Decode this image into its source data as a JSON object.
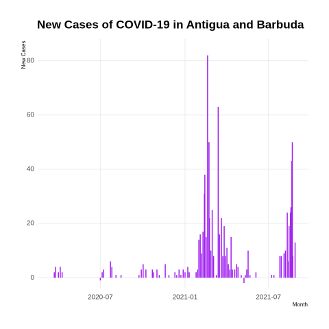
{
  "chart_data": {
    "type": "bar",
    "title": "New Cases of COVID-19 in Antigua and Barbuda",
    "x_label": "Month",
    "y_label": "New Cases",
    "color": "#a020f0",
    "grid": true,
    "xlim": [
      "2020-02-16",
      "2021-09-26"
    ],
    "xticks": [
      {
        "value": "2020-07-01",
        "label": "2020-07"
      },
      {
        "value": "2021-01-01",
        "label": "2021-01"
      },
      {
        "value": "2021-07-01",
        "label": "2021-07"
      }
    ],
    "ylim": [
      -4,
      88
    ],
    "yticks": [
      0,
      20,
      40,
      60,
      80
    ],
    "x": [
      "2020-03-23",
      "2020-03-26",
      "2020-04-01",
      "2020-04-05",
      "2020-04-09",
      "2020-07-01",
      "2020-07-05",
      "2020-07-08",
      "2020-07-23",
      "2020-07-26",
      "2020-08-04",
      "2020-08-15",
      "2020-09-23",
      "2020-09-28",
      "2020-10-02",
      "2020-10-08",
      "2020-10-22",
      "2020-10-25",
      "2020-11-01",
      "2020-11-06",
      "2020-11-19",
      "2020-11-27",
      "2020-12-10",
      "2020-12-14",
      "2020-12-19",
      "2020-12-23",
      "2020-12-28",
      "2021-01-01",
      "2021-01-07",
      "2021-01-10",
      "2021-01-25",
      "2021-01-28",
      "2021-01-31",
      "2021-02-03",
      "2021-02-06",
      "2021-02-09",
      "2021-02-12",
      "2021-02-13",
      "2021-02-16",
      "2021-02-19",
      "2021-02-22",
      "2021-02-23",
      "2021-02-26",
      "2021-03-01",
      "2021-03-04",
      "2021-03-10",
      "2021-03-14",
      "2021-03-17",
      "2021-03-21",
      "2021-03-24",
      "2021-03-27",
      "2021-03-30",
      "2021-04-02",
      "2021-04-05",
      "2021-04-08",
      "2021-04-11",
      "2021-04-14",
      "2021-04-19",
      "2021-04-23",
      "2021-04-26",
      "2021-05-03",
      "2021-05-09",
      "2021-05-12",
      "2021-05-15",
      "2021-05-18",
      "2021-05-22",
      "2021-06-04",
      "2021-07-08",
      "2021-07-13",
      "2021-07-26",
      "2021-07-29",
      "2021-08-04",
      "2021-08-07",
      "2021-08-11",
      "2021-08-14",
      "2021-08-15",
      "2021-08-18",
      "2021-08-19",
      "2021-08-21",
      "2021-08-22",
      "2021-08-23",
      "2021-08-28"
    ],
    "values": [
      2,
      4,
      2,
      4,
      2,
      -1,
      2,
      3,
      6,
      4,
      1,
      1,
      1,
      3,
      5,
      3,
      3,
      2,
      3,
      1,
      5,
      1,
      2,
      1,
      3,
      1,
      3,
      2,
      4,
      2,
      2,
      3,
      14,
      16,
      9,
      17,
      31,
      38,
      15,
      82,
      50,
      22,
      10,
      25,
      8,
      1,
      63,
      16,
      22,
      8,
      19,
      8,
      11,
      5,
      3,
      15,
      3,
      3,
      5,
      4,
      1,
      -2,
      1,
      3,
      10,
      1,
      2,
      1,
      1,
      8,
      8,
      9,
      10,
      24,
      6,
      19,
      24,
      26,
      43,
      50,
      8,
      13
    ]
  }
}
